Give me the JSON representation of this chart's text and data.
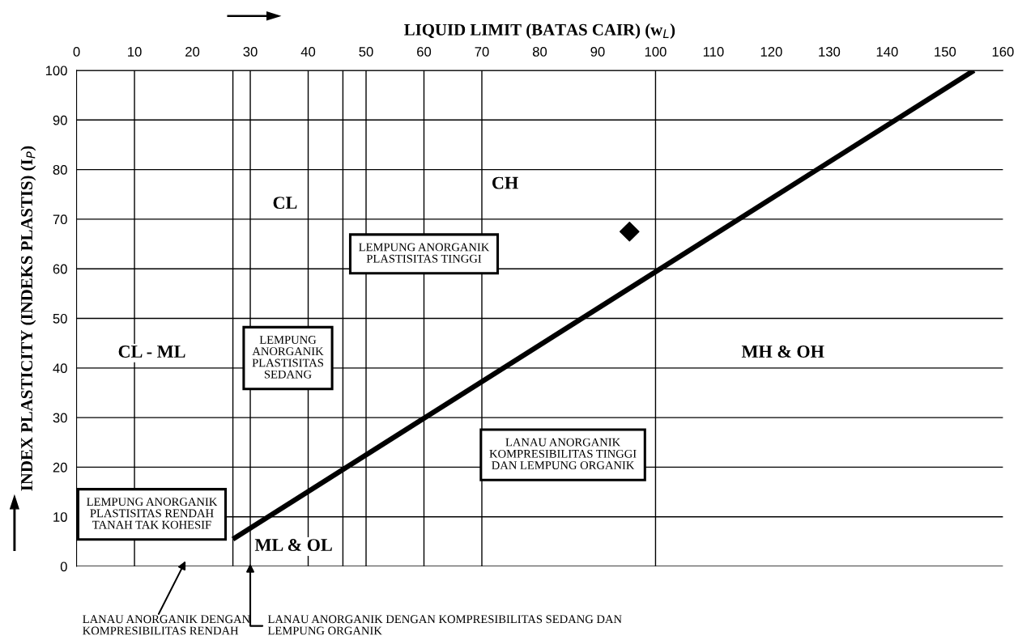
{
  "chart_data": {
    "type": "scatter",
    "xlabel": "LIQUID LIMIT (BATAS CAIR) (w$_{L}$)",
    "ylabel": "INDEX PLASTICITY (INDEKS PLASTIS) (I$_{P}$)",
    "xlim": [
      0,
      160
    ],
    "ylim": [
      0,
      100
    ],
    "xticks": [
      0,
      10,
      20,
      30,
      40,
      50,
      60,
      70,
      80,
      90,
      100,
      110,
      120,
      130,
      140,
      150,
      160
    ],
    "yticks": [
      0,
      10,
      20,
      30,
      40,
      50,
      60,
      70,
      80,
      90,
      100
    ],
    "grid": "y",
    "series": [
      {
        "type": "line",
        "color": "#000000",
        "marker": "none",
        "line_style": "solid",
        "x": [
          27,
          155
        ],
        "values": [
          5.5,
          100
        ]
      },
      {
        "color": "#000000",
        "marker": "diamond",
        "x": [
          95.5
        ],
        "values": [
          67.5
        ]
      }
    ],
    "ref_lines": [
      {
        "axis": "x",
        "value": 10,
        "color": "#000000"
      },
      {
        "axis": "x",
        "value": 27,
        "color": "#000000"
      },
      {
        "axis": "x",
        "value": 30,
        "color": "#000000"
      },
      {
        "axis": "x",
        "value": 40,
        "color": "#000000"
      },
      {
        "axis": "x",
        "value": 46,
        "color": "#000000"
      },
      {
        "axis": "x",
        "value": 50,
        "color": "#000000"
      },
      {
        "axis": "x",
        "value": 60,
        "color": "#000000"
      },
      {
        "axis": "x",
        "value": 70,
        "color": "#000000"
      },
      {
        "axis": "x",
        "value": 100,
        "color": "#000000"
      }
    ],
    "annotations": [
      "CL",
      "CH",
      "CL - ML",
      "MH & OH",
      "ML & OL",
      "LEMPUNG ANORGANIK\nPLASTISITAS TINGGI",
      "LEMPUNG\nANORGANIK\nPLASTISITAS\nSEDANG",
      "LEMPUNG ANORGANIK\nPLASTISITAS RENDAH\nTANAH TAK KOHESIF",
      "LANAU ANORGANIK\nKOMPRESIBILITAS TINGGI\nDAN LEMPUNG ORGANIK",
      "LANAU ANORGANIK DENGAN\nKOMPRESIBILITAS RENDAH",
      "LANAU ANORGANIK DENGAN KOMPRESIBILITAS SEDANG DAN\nLEMPUNG ORGANIK"
    ]
  }
}
